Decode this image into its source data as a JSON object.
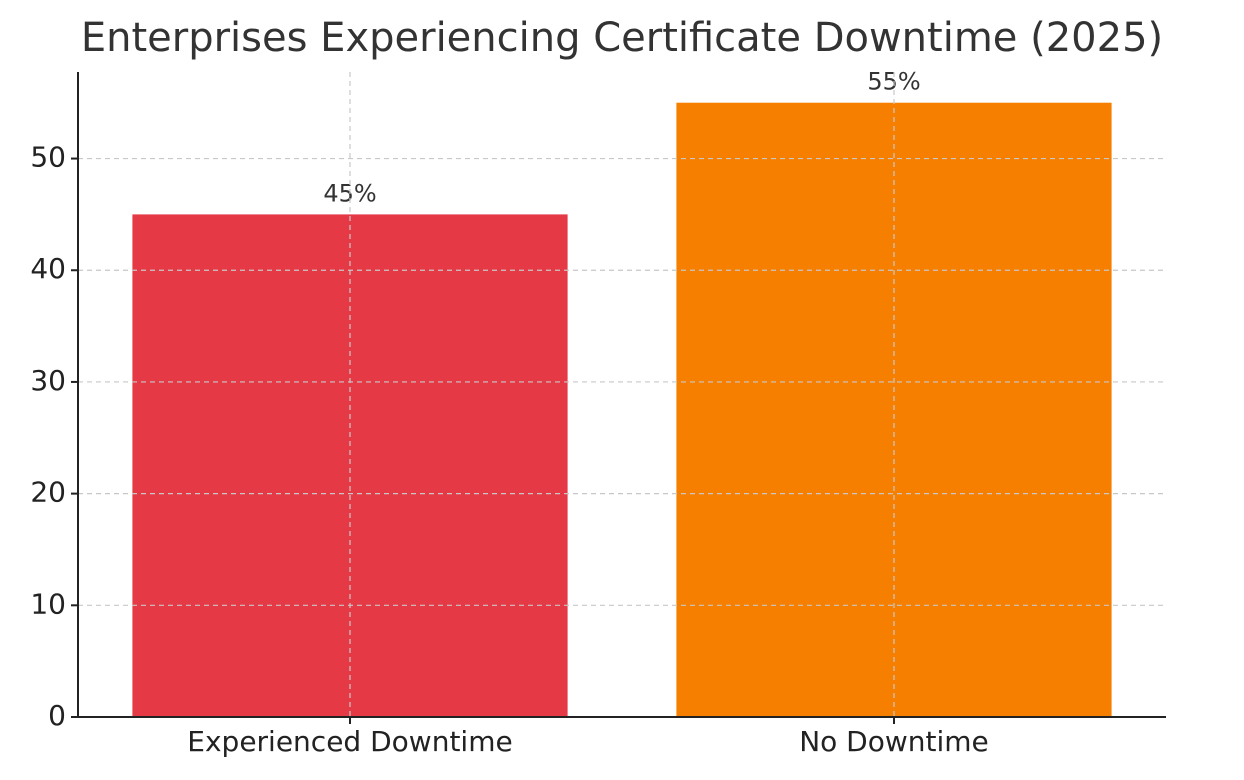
{
  "chart_data": {
    "type": "bar",
    "title": "Enterprises Experiencing Certificate Downtime (2025)",
    "categories": [
      "Experienced Downtime",
      "No Downtime"
    ],
    "values": [
      45,
      55
    ],
    "value_labels": [
      "45%",
      "55%"
    ],
    "colors": [
      "#e63946",
      "#f77f00"
    ],
    "ylim": [
      0,
      57.75
    ],
    "yticks": [
      0,
      10,
      20,
      30,
      40,
      50
    ],
    "grid": true
  }
}
